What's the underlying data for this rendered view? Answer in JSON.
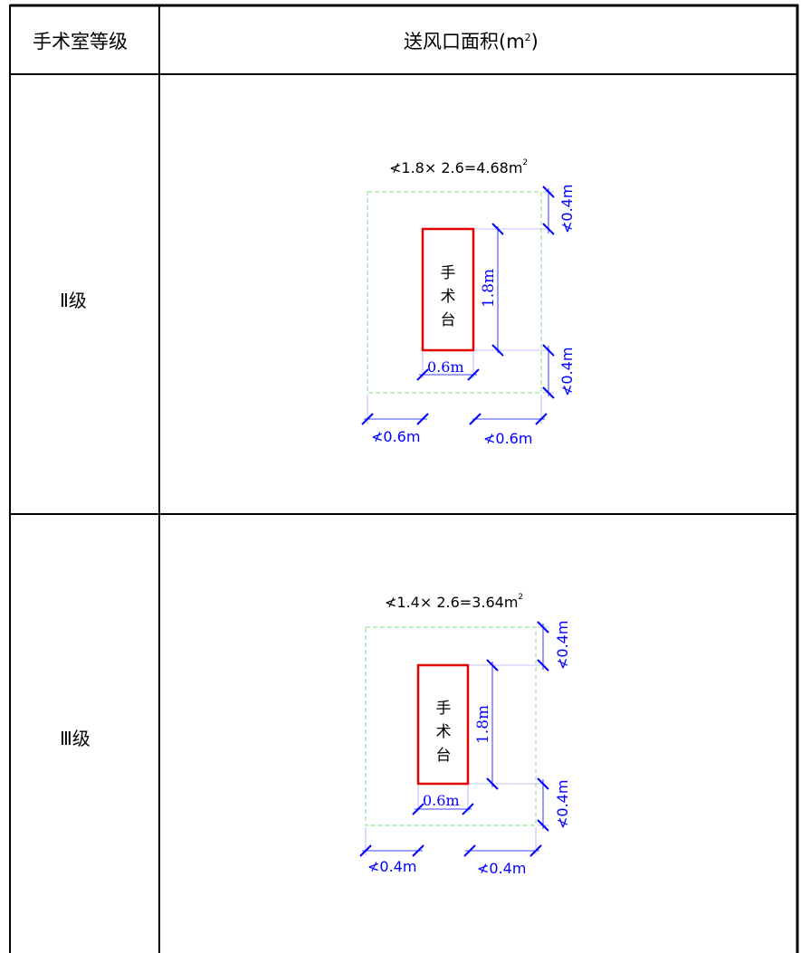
{
  "header": {
    "col1": "手术室等级",
    "col2": "送风口面积(m",
    "col2_sup": "2",
    "col2_close": ")"
  },
  "rows": [
    {
      "level": "Ⅱ级",
      "formula": "≮1.8× 2.6=4.68m",
      "formula_sup": "2",
      "table_label": [
        "手",
        "术",
        "台"
      ],
      "length_label": "1.8m",
      "width_label": "0.6m",
      "margin_top_label": "≮0.4m",
      "margin_bottom_label": "≮0.4m",
      "margin_left_label": "≮0.6m",
      "margin_right_label": "≮0.6m"
    },
    {
      "level": "Ⅲ级",
      "formula": "≮1.4× 2.6=3.64m",
      "formula_sup": "2",
      "table_label": [
        "手",
        "术",
        "台"
      ],
      "length_label": "1.8m",
      "width_label": "0.6m",
      "margin_top_label": "≮0.4m",
      "margin_bottom_label": "≮0.4m",
      "margin_left_label": "≮0.4m",
      "margin_right_label": "≮0.4m"
    }
  ],
  "colors": {
    "grid": "#000000",
    "table_outline": "#e00000",
    "dimension": "#0000ff",
    "outlet_dash": "#7fe27f"
  }
}
